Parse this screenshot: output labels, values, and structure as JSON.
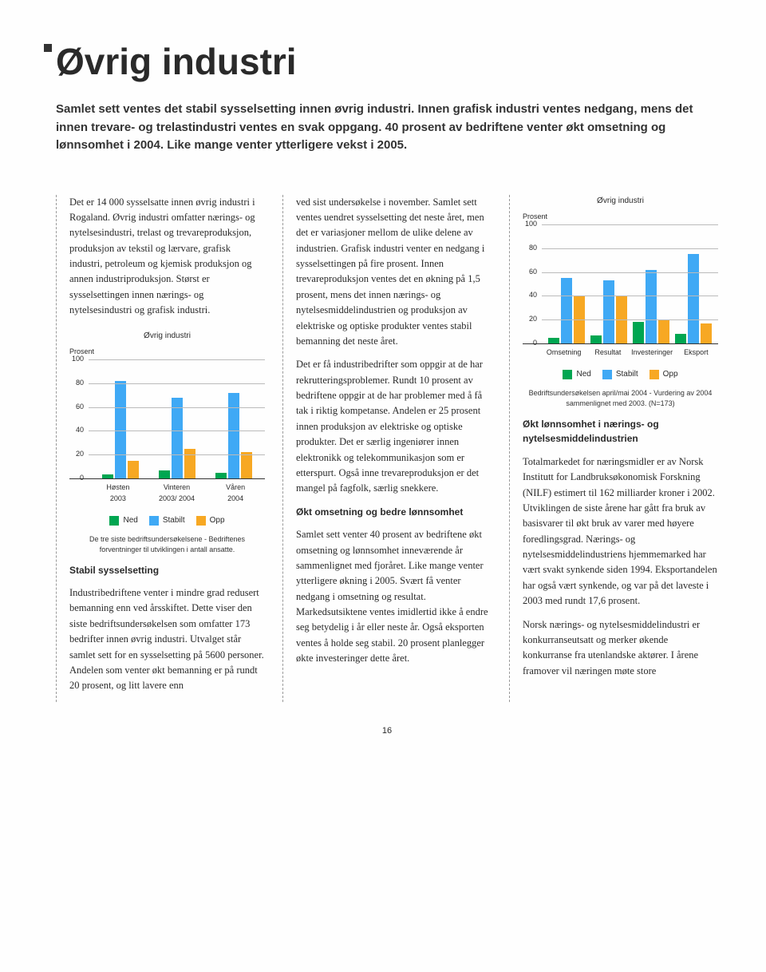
{
  "header": {
    "title": "Øvrig industri",
    "lead": "Samlet sett ventes det stabil sysselsetting innen øvrig industri. Innen grafisk industri ventes nedgang, mens det innen trevare- og trelastindustri ventes en svak oppgang. 40 prosent av bedriftene venter økt omsetning og lønnsomhet i 2004. Like mange venter ytterligere vekst i 2005."
  },
  "col1": {
    "p1": "Det er 14 000 sysselsatte innen øvrig industri i Rogaland. Øvrig industri omfatter nærings- og nytelsesindustri, trelast og trevareproduksjon, produksjon av tekstil og lærvare, grafisk industri, petroleum og kjemisk produksjon og annen industriproduksjon. Størst er sysselsettingen innen nærings- og nytelsesindustri og grafisk industri.",
    "sub1": "Stabil sysselsetting",
    "p2": "Industribedriftene venter i mindre grad redusert bemanning enn ved årsskiftet. Dette viser den siste bedriftsundersøkelsen som omfatter 173 bedrifter innen øvrig industri. Utvalget står samlet sett for en sysselsetting på 5600 personer. Andelen som venter økt bemanning er på rundt 20 prosent, og litt lavere enn"
  },
  "col2": {
    "p1": "ved sist undersøkelse i november. Samlet sett ventes uendret sysselsetting det neste året, men det er variasjoner mellom de ulike delene av industrien. Grafisk industri venter en nedgang i sysselsettingen på fire prosent. Innen trevareproduksjon ventes det en økning på 1,5 prosent, mens det innen nærings- og nytelsesmiddelindustrien og produksjon av elektriske og optiske produkter ventes stabil bemanning det neste året.",
    "p2": "Det er få industribedrifter som oppgir at de har rekrutteringsproblemer. Rundt 10 prosent av bedriftene oppgir at de har problemer med å få tak i riktig kompetanse. Andelen er 25 prosent innen produksjon av elektriske og optiske produkter. Det er særlig ingeniører innen elektronikk og telekommunikasjon som er etterspurt. Også inne trevareproduksjon er det mangel på fagfolk, særlig snekkere.",
    "sub1": "Økt omsetning og bedre lønnsomhet",
    "p3": "Samlet sett venter 40 prosent av bedriftene økt omsetning og lønnsomhet inneværende år sammenlignet med fjoråret. Like mange venter ytterligere økning i 2005. Svært få venter nedgang i omsetning og resultat. Markedsutsiktene ventes imidlertid ikke å endre seg betydelig i år eller neste år. Også eksporten ventes å holde seg stabil. 20 prosent planlegger økte investeringer dette året."
  },
  "col3": {
    "sub1": "Økt lønnsomhet i nærings- og nytelsesmiddelindustrien",
    "p1": "Totalmarkedet for næringsmidler er av Norsk Institutt for Landbruksøkonomisk Forskning (NILF) estimert til 162 milliarder kroner i 2002. Utviklingen de siste årene har gått fra bruk av basisvarer til økt bruk av varer med høyere foredlingsgrad. Nærings- og nytelsesmiddelindustriens hjemmemarked har vært svakt synkende siden 1994. Eksportandelen har også vært synkende, og var på det laveste i 2003 med rundt 17,6 prosent.",
    "p2": "Norsk nærings- og nytelsesmiddelindustri er konkurranseutsatt og merker økende konkurranse fra utenlandske aktører. I årene framover vil næringen møte store"
  },
  "chart1": {
    "title": "Øvrig industri",
    "ylabel": "Prosent",
    "ylim": [
      0,
      100
    ],
    "ytick_step": 20,
    "grid_color": "#bbbbbb",
    "categories": [
      "Høsten\n2003",
      "Vinteren\n2003/ 2004",
      "Våren\n2004"
    ],
    "series": [
      {
        "name": "Ned",
        "color": "#00a651",
        "values": [
          3,
          7,
          5
        ]
      },
      {
        "name": "Stabilt",
        "color": "#3fa9f5",
        "values": [
          82,
          68,
          72
        ]
      },
      {
        "name": "Opp",
        "color": "#f7a823",
        "values": [
          15,
          25,
          22
        ]
      }
    ],
    "legend": [
      {
        "label": "Ned",
        "color": "#00a651"
      },
      {
        "label": "Stabilt",
        "color": "#3fa9f5"
      },
      {
        "label": "Opp",
        "color": "#f7a823"
      }
    ],
    "caption": "De tre siste bedriftsundersøkelsene - Bedriftenes forventninger til utviklingen i antall ansatte."
  },
  "chart2": {
    "title": "Øvrig industri",
    "ylabel": "Prosent",
    "ylim": [
      0,
      100
    ],
    "ytick_step": 20,
    "grid_color": "#bbbbbb",
    "categories": [
      "Omsetning",
      "Resultat",
      "Investeringer",
      "Eksport"
    ],
    "series": [
      {
        "name": "Ned",
        "color": "#00a651",
        "values": [
          5,
          7,
          18,
          8
        ]
      },
      {
        "name": "Stabilt",
        "color": "#3fa9f5",
        "values": [
          55,
          53,
          62,
          75
        ]
      },
      {
        "name": "Opp",
        "color": "#f7a823",
        "values": [
          40,
          40,
          20,
          17
        ]
      }
    ],
    "legend": [
      {
        "label": "Ned",
        "color": "#00a651"
      },
      {
        "label": "Stabilt",
        "color": "#3fa9f5"
      },
      {
        "label": "Opp",
        "color": "#f7a823"
      }
    ],
    "caption": "Bedriftsundersøkelsen april/mai 2004 - Vurdering av 2004 sammenlignet med 2003. (N=173)"
  },
  "page_number": "16"
}
